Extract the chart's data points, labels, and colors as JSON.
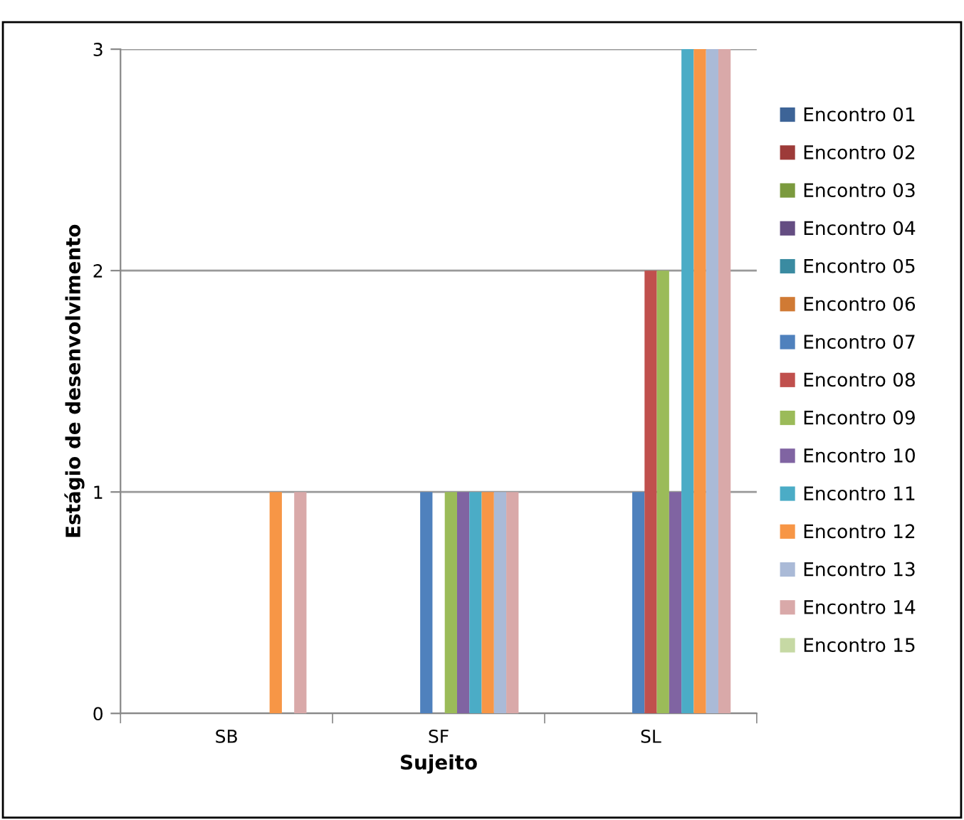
{
  "chart_data": {
    "type": "bar",
    "xlabel": "Sujeito",
    "ylabel": "Estágio de desenvolvimento",
    "categories": [
      "SB",
      "SF",
      "SL"
    ],
    "ylim": [
      0,
      3
    ],
    "yticks": [
      0,
      1,
      2,
      3
    ],
    "grid": "y",
    "legend": "right",
    "series": [
      {
        "name": "Encontro 01",
        "color": "#3d6497",
        "values": [
          0,
          0,
          0
        ]
      },
      {
        "name": "Encontro 02",
        "color": "#9d3b39",
        "values": [
          0,
          0,
          0
        ]
      },
      {
        "name": "Encontro 03",
        "color": "#7b9a3e",
        "values": [
          0,
          0,
          0
        ]
      },
      {
        "name": "Encontro 04",
        "color": "#644d82",
        "values": [
          0,
          0,
          0
        ]
      },
      {
        "name": "Encontro 05",
        "color": "#3a8ba1",
        "values": [
          0,
          0,
          0
        ]
      },
      {
        "name": "Encontro 06",
        "color": "#d07a34",
        "values": [
          0,
          0,
          0
        ]
      },
      {
        "name": "Encontro 07",
        "color": "#4f81bd",
        "values": [
          0,
          1,
          1
        ]
      },
      {
        "name": "Encontro 08",
        "color": "#c0504d",
        "values": [
          0,
          0,
          2
        ]
      },
      {
        "name": "Encontro 09",
        "color": "#9bbb59",
        "values": [
          0,
          1,
          2
        ]
      },
      {
        "name": "Encontro 10",
        "color": "#8064a2",
        "values": [
          0,
          1,
          1
        ]
      },
      {
        "name": "Encontro 11",
        "color": "#4bacc6",
        "values": [
          0,
          1,
          3
        ]
      },
      {
        "name": "Encontro 12",
        "color": "#f79646",
        "values": [
          1,
          1,
          3
        ]
      },
      {
        "name": "Encontro 13",
        "color": "#aabad7",
        "values": [
          0,
          1,
          3
        ]
      },
      {
        "name": "Encontro 14",
        "color": "#d9a9a9",
        "values": [
          1,
          1,
          3
        ]
      },
      {
        "name": "Encontro 15",
        "color": "#c6d9a4",
        "values": [
          0,
          0,
          0
        ]
      }
    ]
  }
}
